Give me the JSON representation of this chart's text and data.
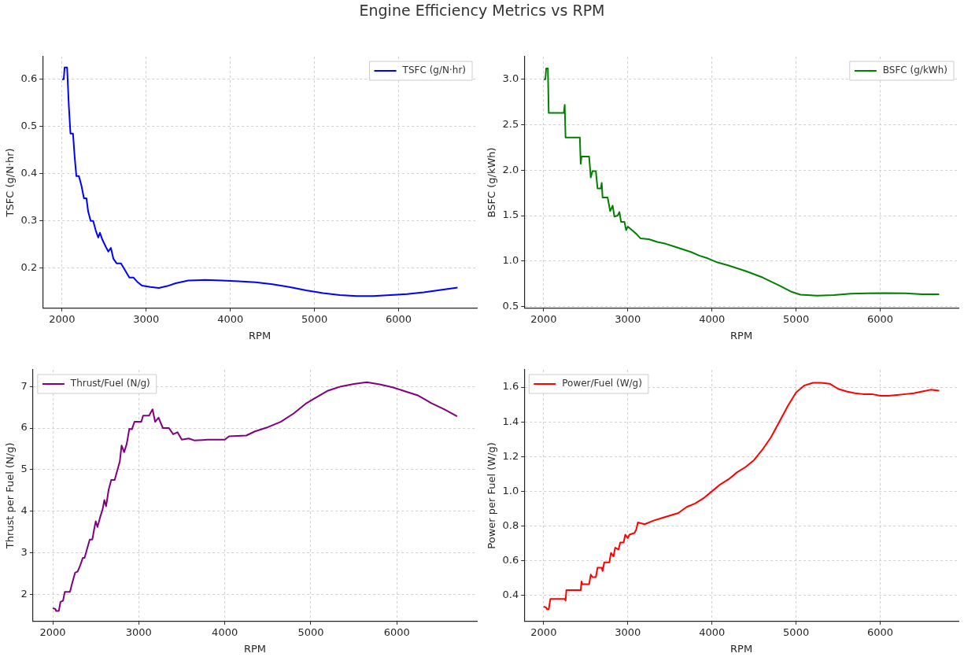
{
  "chart_data": [
    {
      "type": "line",
      "title": "Engine Efficiency Metrics vs RPM",
      "xlabel": "RPM",
      "ylabel": "TSFC (g/N·hr)",
      "xlim": [
        1770,
        6930
      ],
      "xticks": [
        2000,
        3000,
        4000,
        5000,
        6000
      ],
      "ylim": [
        0.115,
        0.648
      ],
      "yticks": [
        0.2,
        0.3,
        0.4,
        0.5,
        0.6
      ],
      "grid": true,
      "legend": "top right",
      "series": [
        {
          "name": "TSFC (g/N·hr)",
          "color": "#0000ff",
          "x": [
            2000,
            2020,
            2030,
            2060,
            2080,
            2100,
            2130,
            2150,
            2170,
            2200,
            2230,
            2260,
            2290,
            2310,
            2340,
            2370,
            2400,
            2430,
            2450,
            2480,
            2520,
            2550,
            2580,
            2610,
            2650,
            2700,
            2750,
            2800,
            2850,
            2900,
            2950,
            3050,
            3150,
            3250,
            3350,
            3500,
            3700,
            3900,
            4100,
            4300,
            4500,
            4700,
            4900,
            5100,
            5300,
            5500,
            5700,
            5900,
            6100,
            6300,
            6500,
            6700
          ],
          "values": [
            0.6,
            0.6,
            0.625,
            0.625,
            0.545,
            0.485,
            0.485,
            0.435,
            0.395,
            0.395,
            0.375,
            0.348,
            0.348,
            0.32,
            0.3,
            0.3,
            0.28,
            0.265,
            0.275,
            0.26,
            0.245,
            0.235,
            0.243,
            0.22,
            0.21,
            0.21,
            0.195,
            0.18,
            0.18,
            0.17,
            0.163,
            0.16,
            0.158,
            0.162,
            0.168,
            0.174,
            0.175,
            0.174,
            0.172,
            0.17,
            0.166,
            0.16,
            0.153,
            0.147,
            0.143,
            0.141,
            0.141,
            0.143,
            0.145,
            0.149,
            0.154,
            0.159
          ]
        }
      ]
    },
    {
      "type": "line",
      "xlabel": "RPM",
      "ylabel": "BSFC (g/kWh)",
      "xlim": [
        1770,
        6930
      ],
      "xticks": [
        2000,
        3000,
        4000,
        5000,
        6000
      ],
      "ylim": [
        0.48,
        3.25
      ],
      "yticks": [
        0.5,
        {
          "value": 1,
          "label": "1.0"
        },
        1.5,
        {
          "value": 2,
          "label": "2.0"
        },
        2.5,
        {
          "value": 3,
          "label": "3.0"
        }
      ],
      "grid": true,
      "legend": "top right",
      "series": [
        {
          "name": "BSFC (g/kWh)",
          "color": "#008000",
          "x": [
            2000,
            2020,
            2030,
            2050,
            2060,
            2240,
            2250,
            2260,
            2430,
            2440,
            2450,
            2540,
            2560,
            2580,
            2620,
            2640,
            2680,
            2690,
            2700,
            2760,
            2790,
            2820,
            2840,
            2880,
            2900,
            2920,
            2960,
            2980,
            3000,
            3050,
            3100,
            3150,
            3250,
            3350,
            3450,
            3550,
            3650,
            3750,
            3850,
            3950,
            4050,
            4200,
            4400,
            4600,
            4800,
            4950,
            5050,
            5250,
            5450,
            5650,
            5850,
            6050,
            6300,
            6500,
            6700
          ],
          "values": [
            3.0,
            3.0,
            3.12,
            3.12,
            2.63,
            2.63,
            2.72,
            2.36,
            2.36,
            2.07,
            2.15,
            2.15,
            1.92,
            1.99,
            1.99,
            1.8,
            1.8,
            1.86,
            1.7,
            1.7,
            1.55,
            1.61,
            1.49,
            1.5,
            1.54,
            1.43,
            1.43,
            1.34,
            1.38,
            1.34,
            1.3,
            1.25,
            1.24,
            1.21,
            1.19,
            1.16,
            1.13,
            1.1,
            1.06,
            1.03,
            0.99,
            0.95,
            0.89,
            0.82,
            0.73,
            0.66,
            0.63,
            0.62,
            0.625,
            0.64,
            0.645,
            0.648,
            0.645,
            0.635,
            0.635
          ]
        }
      ]
    },
    {
      "type": "line",
      "xlabel": "RPM",
      "ylabel": "Thrust per Fuel (N/g)",
      "xlim": [
        1770,
        6930
      ],
      "xticks": [
        2000,
        3000,
        4000,
        5000,
        6000
      ],
      "ylim": [
        1.35,
        7.4
      ],
      "yticks": [
        2,
        3,
        4,
        5,
        6,
        7
      ],
      "grid": true,
      "legend": "top left",
      "series": [
        {
          "name": "Thrust/Fuel (N/g)",
          "color": "#800080",
          "x": [
            2000,
            2030,
            2040,
            2070,
            2090,
            2120,
            2140,
            2200,
            2230,
            2260,
            2290,
            2320,
            2350,
            2370,
            2400,
            2430,
            2460,
            2480,
            2500,
            2520,
            2550,
            2580,
            2600,
            2620,
            2650,
            2680,
            2720,
            2750,
            2780,
            2800,
            2830,
            2860,
            2890,
            2920,
            2950,
            3030,
            3050,
            3120,
            3160,
            3190,
            3230,
            3280,
            3350,
            3400,
            3450,
            3500,
            3580,
            3650,
            3800,
            4000,
            4050,
            4250,
            4350,
            4500,
            4650,
            4800,
            4950,
            5050,
            5200,
            5350,
            5500,
            5650,
            5800,
            5950,
            6100,
            6250,
            6400,
            6550,
            6700
          ],
          "values": [
            1.67,
            1.65,
            1.6,
            1.6,
            1.82,
            1.85,
            2.06,
            2.06,
            2.3,
            2.52,
            2.55,
            2.7,
            2.88,
            2.88,
            3.1,
            3.32,
            3.32,
            3.55,
            3.76,
            3.62,
            3.85,
            4.05,
            4.27,
            4.12,
            4.52,
            4.75,
            4.75,
            4.98,
            5.2,
            5.58,
            5.42,
            5.62,
            5.98,
            5.97,
            6.15,
            6.15,
            6.3,
            6.3,
            6.45,
            6.15,
            6.25,
            6.0,
            6.0,
            5.85,
            5.9,
            5.72,
            5.75,
            5.7,
            5.72,
            5.72,
            5.8,
            5.82,
            5.92,
            6.02,
            6.15,
            6.35,
            6.6,
            6.72,
            6.9,
            7.0,
            7.06,
            7.1,
            7.05,
            6.98,
            6.88,
            6.78,
            6.6,
            6.45,
            6.28
          ]
        }
      ]
    },
    {
      "type": "line",
      "xlabel": "RPM",
      "ylabel": "Power per Fuel (W/g)",
      "xlim": [
        1770,
        6930
      ],
      "xticks": [
        2000,
        3000,
        4000,
        5000,
        6000
      ],
      "ylim": [
        0.25,
        1.7
      ],
      "yticks": [
        0.4,
        0.6,
        0.8,
        {
          "value": 1,
          "label": "1.0"
        },
        1.2,
        1.4,
        1.6
      ],
      "grid": true,
      "legend": "top left",
      "series": [
        {
          "name": "Power/Fuel (W/g)",
          "color": "#ff0000",
          "x": [
            2000,
            2030,
            2040,
            2060,
            2080,
            2250,
            2260,
            2270,
            2440,
            2450,
            2460,
            2540,
            2560,
            2580,
            2620,
            2640,
            2690,
            2700,
            2720,
            2780,
            2800,
            2830,
            2850,
            2890,
            2910,
            2950,
            2970,
            3000,
            3020,
            3080,
            3100,
            3120,
            3200,
            3300,
            3400,
            3500,
            3600,
            3700,
            3800,
            3900,
            4000,
            4100,
            4200,
            4300,
            4400,
            4500,
            4600,
            4700,
            4800,
            4900,
            5000,
            5100,
            5200,
            5300,
            5400,
            5500,
            5600,
            5700,
            5800,
            5900,
            6000,
            6100,
            6200,
            6300,
            6400,
            6500,
            6600,
            6700
          ],
          "values": [
            0.335,
            0.33,
            0.32,
            0.32,
            0.38,
            0.38,
            0.37,
            0.43,
            0.43,
            0.48,
            0.465,
            0.465,
            0.52,
            0.505,
            0.505,
            0.56,
            0.56,
            0.54,
            0.59,
            0.59,
            0.645,
            0.625,
            0.675,
            0.665,
            0.705,
            0.705,
            0.75,
            0.73,
            0.75,
            0.76,
            0.78,
            0.82,
            0.81,
            0.83,
            0.845,
            0.86,
            0.875,
            0.91,
            0.93,
            0.96,
            1.0,
            1.04,
            1.07,
            1.11,
            1.14,
            1.18,
            1.24,
            1.31,
            1.4,
            1.49,
            1.57,
            1.61,
            1.625,
            1.625,
            1.62,
            1.59,
            1.575,
            1.565,
            1.56,
            1.56,
            1.55,
            1.55,
            1.555,
            1.56,
            1.565,
            1.575,
            1.585,
            1.58
          ]
        }
      ]
    }
  ]
}
